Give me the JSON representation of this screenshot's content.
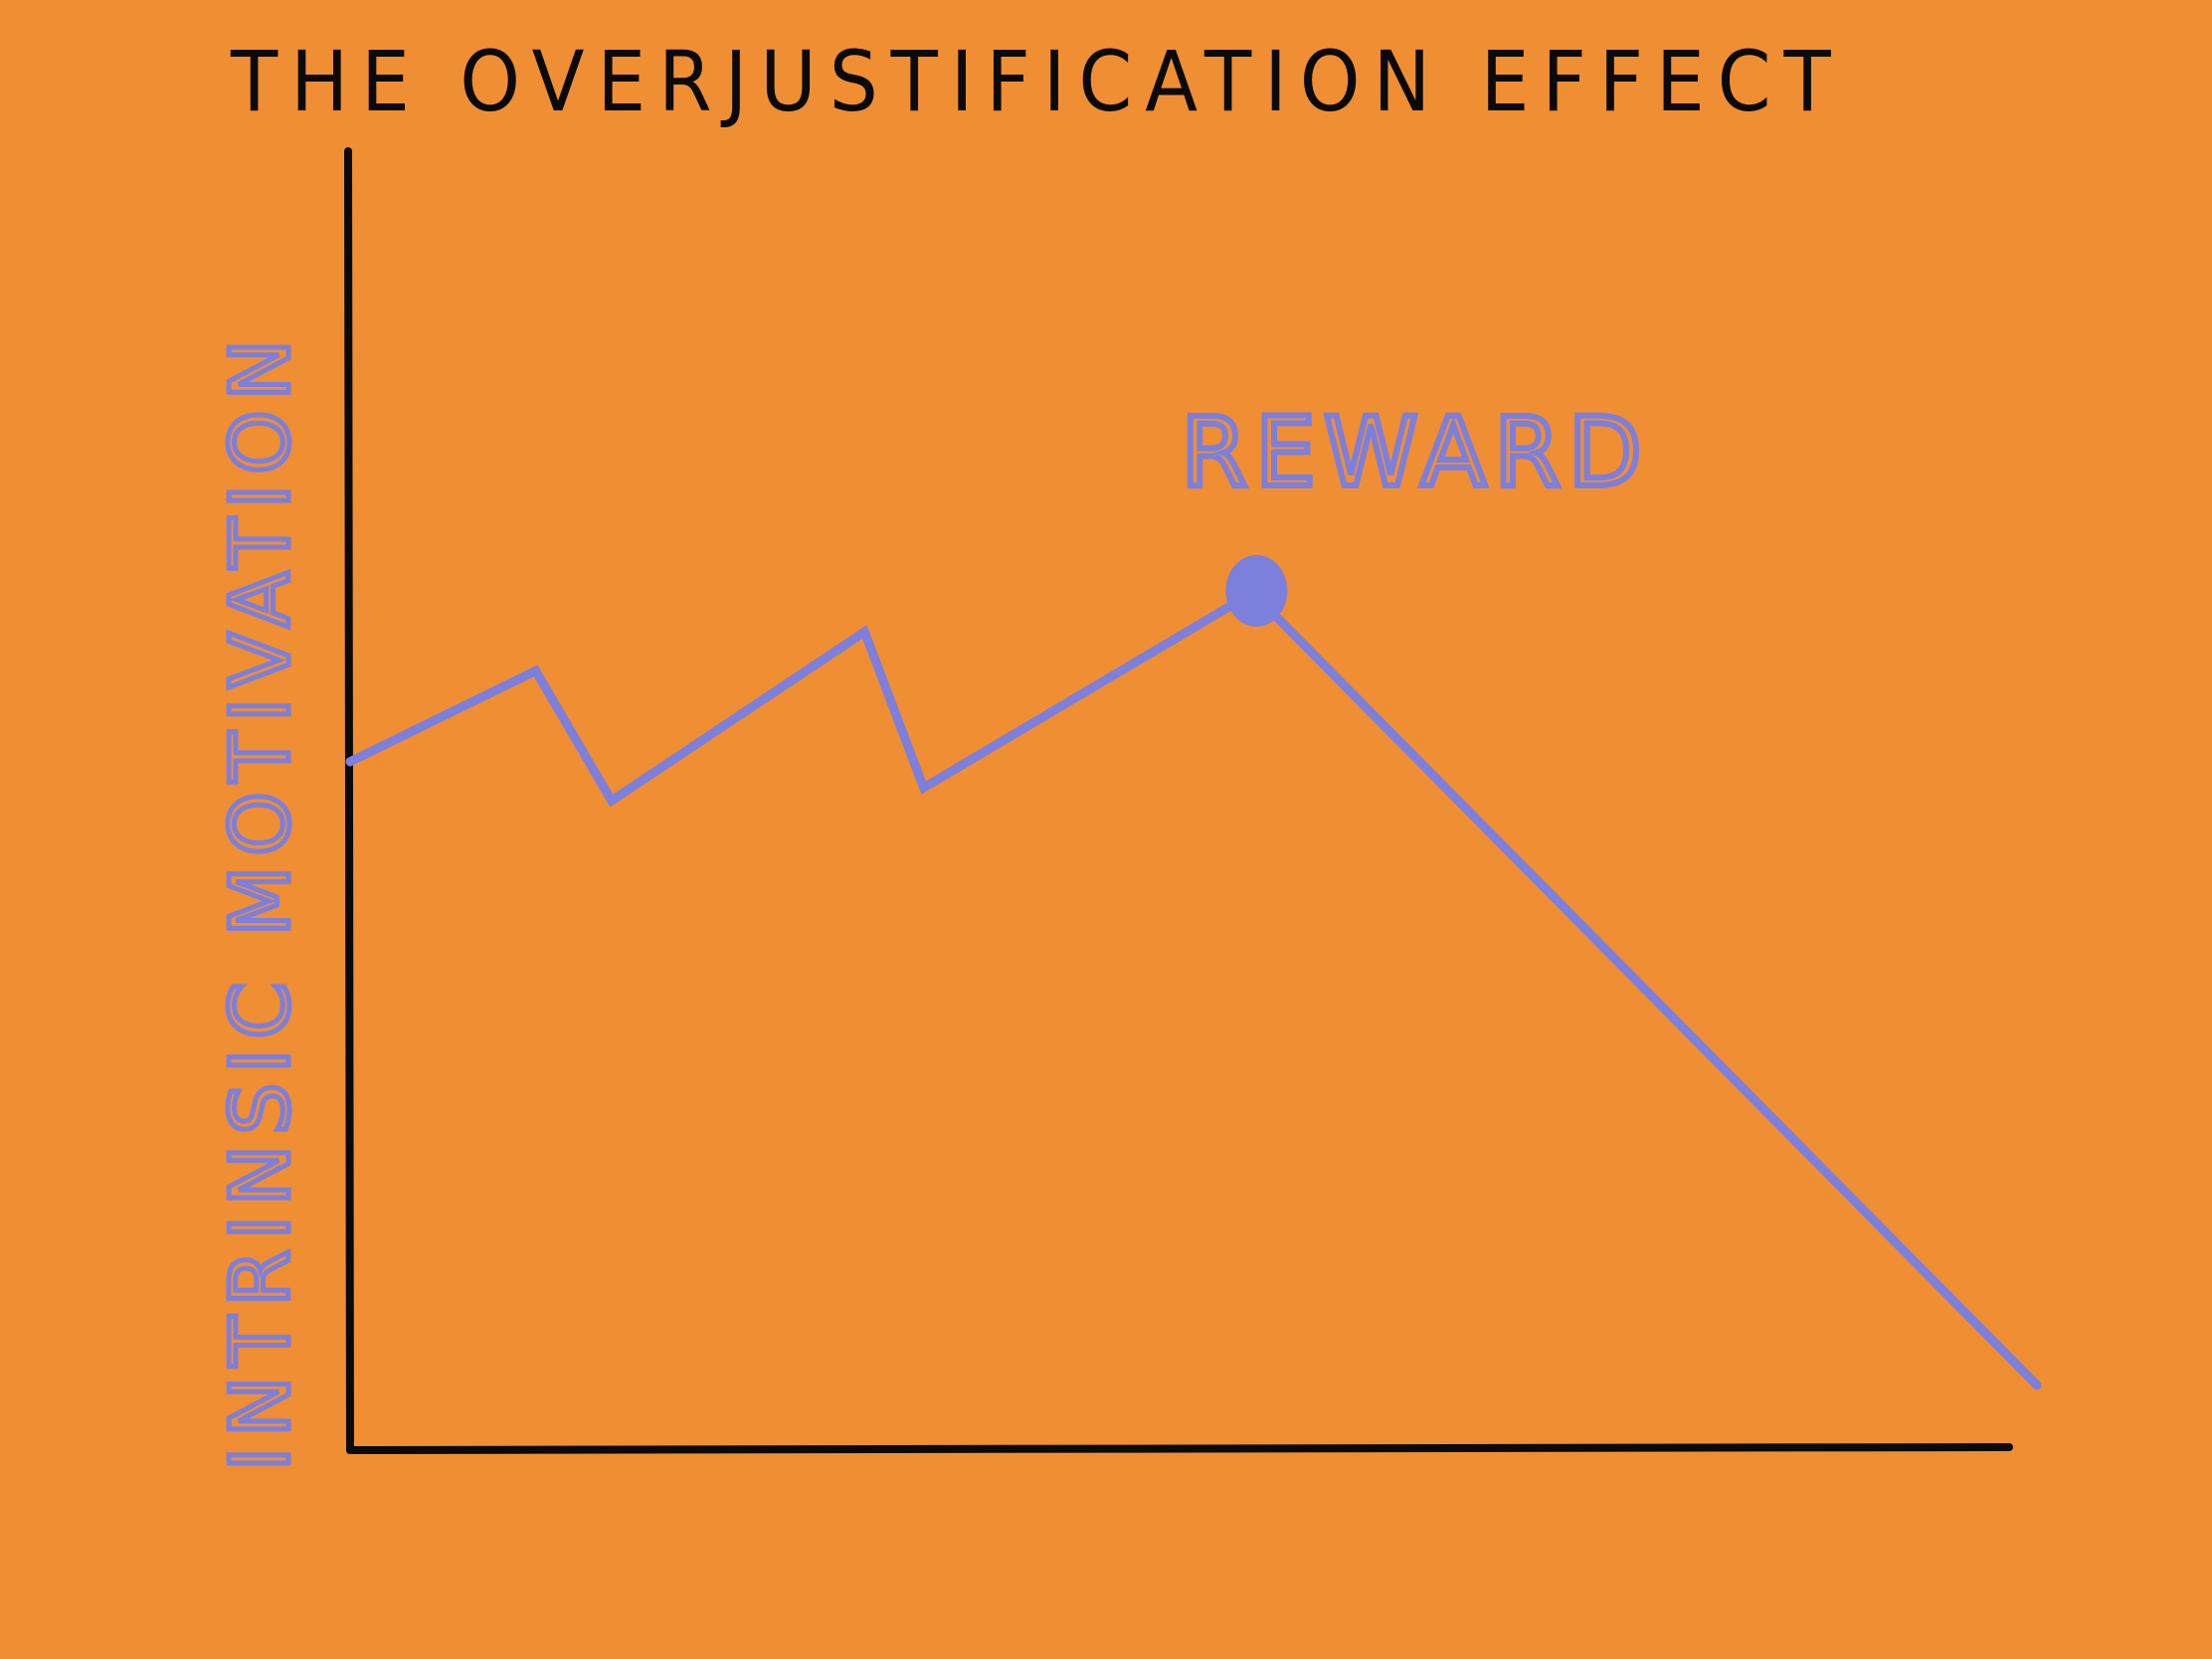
{
  "chart_data": {
    "type": "line",
    "title": "THE OVERJUSTIFICATION EFFECT",
    "xlabel": "",
    "ylabel": "INTRINSIC MOTIVATION",
    "xlim": [
      0,
      10
    ],
    "ylim": [
      0,
      10
    ],
    "grid": false,
    "series": [
      {
        "x": [
          0,
          1.1,
          1.55,
          3.05,
          3.4,
          5.35,
          10
        ],
        "y": [
          5.3,
          6.0,
          5.0,
          6.3,
          5.1,
          6.6,
          0.5
        ],
        "color": "#7C7FDB"
      }
    ],
    "annotations": [
      {
        "text": "REWARD",
        "x": 5.35,
        "y": 6.6,
        "marker": "dot"
      }
    ]
  },
  "colors": {
    "background": "#F08E33",
    "axis": "#0a0a0a",
    "series": "#7C7FDB"
  }
}
